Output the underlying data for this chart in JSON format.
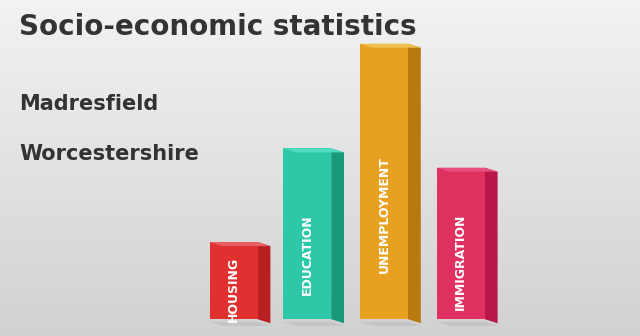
{
  "title_line1": "Socio-economic statistics",
  "title_line2": "Madresfield",
  "title_line3": "Worcestershire",
  "categories": [
    "HOUSING",
    "EDUCATION",
    "UNEMPLOYMENT",
    "IMMIGRATION"
  ],
  "values": [
    0.28,
    0.62,
    1.0,
    0.55
  ],
  "bar_colors_front": [
    "#E03030",
    "#2DC8A8",
    "#E8A020",
    "#E03060"
  ],
  "bar_colors_side": [
    "#B82020",
    "#1A9878",
    "#B87A10",
    "#B81848"
  ],
  "bar_colors_top": [
    "#E86060",
    "#50DCC0",
    "#F0C050",
    "#E85080"
  ],
  "floor_shadow": "#C8C8C8",
  "background_color": "#E0E0E0",
  "text_color": "#333333",
  "label_color": "#FFFFFF",
  "title_fontsize": 20,
  "subtitle_fontsize": 15,
  "bar_label_fontsize": 9
}
